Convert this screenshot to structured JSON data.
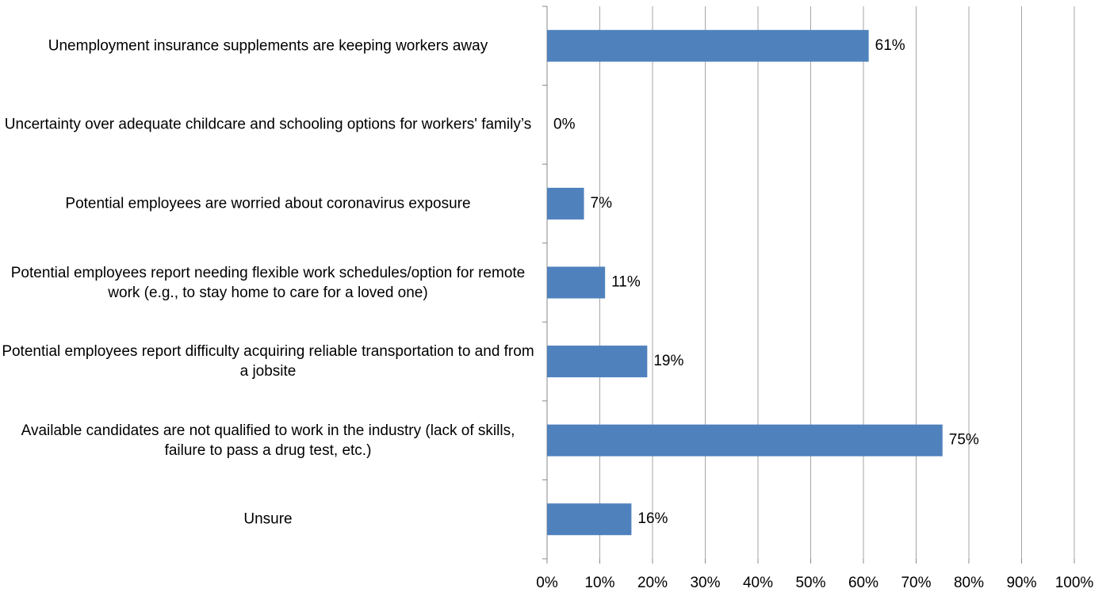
{
  "chart_data": {
    "type": "bar",
    "orientation": "horizontal",
    "categories": [
      "Unemployment insurance supplements are keeping workers away",
      "Uncertainty over adequate childcare and schooling options for workers' family’s",
      "Potential employees are worried about coronavirus exposure",
      "Potential employees report needing flexible work schedules/option for remote work (e.g., to stay home to care for a loved one)",
      "Potential employees report difficulty acquiring reliable transportation to and from a jobsite",
      "Available candidates are not qualified to work in the industry (lack of skills, failure to pass a drug test, etc.)",
      "Unsure"
    ],
    "values": [
      61,
      0,
      7,
      11,
      19,
      75,
      16
    ],
    "value_labels": [
      "61%",
      "0%",
      "7%",
      "11%",
      "19%",
      "75%",
      "16%"
    ],
    "color": "#4f81bd",
    "xlim": [
      0,
      100
    ],
    "xticks": [
      {
        "value": 0,
        "label": "0%"
      },
      {
        "value": 10,
        "label": "10%"
      },
      {
        "value": 20,
        "label": "20%"
      },
      {
        "value": 30,
        "label": "30%"
      },
      {
        "value": 40,
        "label": "40%"
      },
      {
        "value": 50,
        "label": "50%"
      },
      {
        "value": 60,
        "label": "60%"
      },
      {
        "value": 70,
        "label": "70%"
      },
      {
        "value": 80,
        "label": "80%"
      },
      {
        "value": 90,
        "label": "90%"
      },
      {
        "value": 100,
        "label": "100%"
      }
    ],
    "grid": true
  }
}
